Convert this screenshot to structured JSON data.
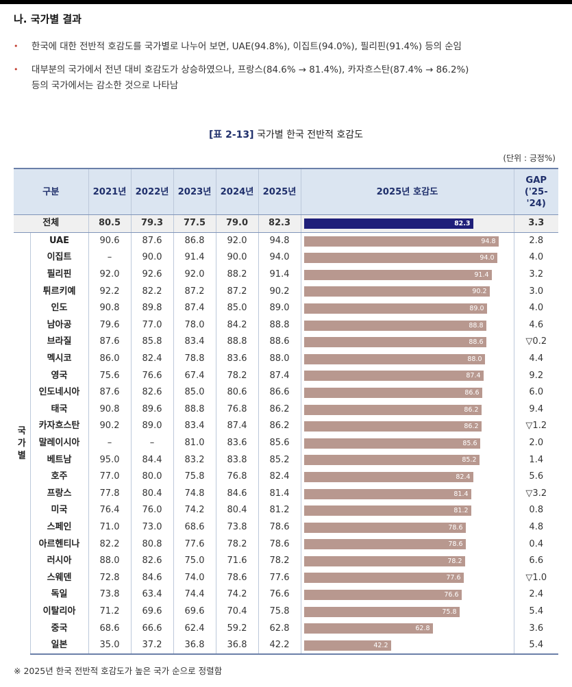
{
  "section": {
    "title": "나. 국가별 결과",
    "bullets": [
      {
        "lines": [
          "한국에 대한 전반적 호감도를 국가별로 나누어 보면, UAE(94.8%), 이집트(94.0%), 필리핀(91.4%) 등의 순임"
        ]
      },
      {
        "lines": [
          "대부분의 국가에서 전년 대비 호감도가 상승하였으나, 프랑스(84.6% → 81.4%), 카자흐스탄(87.4% → 86.2%)",
          "등의 국가에서는 감소한 것으로 나타남"
        ]
      }
    ],
    "bullet_marker": "•"
  },
  "table": {
    "label": "[표 2-13]",
    "title": "국가별 한국 전반적 호감도",
    "unit": "(단위 : 긍정%)",
    "side_label": "국가별",
    "headers": [
      "구분",
      "2021년",
      "2022년",
      "2023년",
      "2024년",
      "2025년",
      "2025년 호감도",
      "GAP ('25-'24)"
    ],
    "bar_max": 100,
    "colors": {
      "total_bar": "#1f1f7a",
      "bar": "#b8988f",
      "header_bg": "#dbe5f1"
    },
    "total": {
      "name": "전체",
      "y2021": "80.5",
      "y2022": "79.3",
      "y2023": "77.5",
      "y2024": "79.0",
      "y2025": "82.3",
      "gap": "3.3",
      "value": 82.3
    },
    "rows": [
      {
        "name": "UAE",
        "y2021": "90.6",
        "y2022": "87.6",
        "y2023": "86.8",
        "y2024": "92.0",
        "y2025": "94.8",
        "gap": "2.8",
        "value": 94.8
      },
      {
        "name": "이집트",
        "y2021": "–",
        "y2022": "90.0",
        "y2023": "91.4",
        "y2024": "90.0",
        "y2025": "94.0",
        "gap": "4.0",
        "value": 94.0
      },
      {
        "name": "필리핀",
        "y2021": "92.0",
        "y2022": "92.6",
        "y2023": "92.0",
        "y2024": "88.2",
        "y2025": "91.4",
        "gap": "3.2",
        "value": 91.4
      },
      {
        "name": "튀르키예",
        "y2021": "92.2",
        "y2022": "82.2",
        "y2023": "87.2",
        "y2024": "87.2",
        "y2025": "90.2",
        "gap": "3.0",
        "value": 90.2
      },
      {
        "name": "인도",
        "y2021": "90.8",
        "y2022": "89.8",
        "y2023": "87.4",
        "y2024": "85.0",
        "y2025": "89.0",
        "gap": "4.0",
        "value": 89.0
      },
      {
        "name": "남아공",
        "y2021": "79.6",
        "y2022": "77.0",
        "y2023": "78.0",
        "y2024": "84.2",
        "y2025": "88.8",
        "gap": "4.6",
        "value": 88.8
      },
      {
        "name": "브라질",
        "y2021": "87.6",
        "y2022": "85.8",
        "y2023": "83.4",
        "y2024": "88.8",
        "y2025": "88.6",
        "gap": "▽0.2",
        "value": 88.6
      },
      {
        "name": "멕시코",
        "y2021": "86.0",
        "y2022": "82.4",
        "y2023": "78.8",
        "y2024": "83.6",
        "y2025": "88.0",
        "gap": "4.4",
        "value": 88.0
      },
      {
        "name": "영국",
        "y2021": "75.6",
        "y2022": "76.6",
        "y2023": "67.4",
        "y2024": "78.2",
        "y2025": "87.4",
        "gap": "9.2",
        "value": 87.4
      },
      {
        "name": "인도네시아",
        "y2021": "87.6",
        "y2022": "82.6",
        "y2023": "85.0",
        "y2024": "80.6",
        "y2025": "86.6",
        "gap": "6.0",
        "value": 86.6
      },
      {
        "name": "태국",
        "y2021": "90.8",
        "y2022": "89.6",
        "y2023": "88.8",
        "y2024": "76.8",
        "y2025": "86.2",
        "gap": "9.4",
        "value": 86.2
      },
      {
        "name": "카자흐스탄",
        "y2021": "90.2",
        "y2022": "89.0",
        "y2023": "83.4",
        "y2024": "87.4",
        "y2025": "86.2",
        "gap": "▽1.2",
        "value": 86.2
      },
      {
        "name": "말레이시아",
        "y2021": "–",
        "y2022": "–",
        "y2023": "81.0",
        "y2024": "83.6",
        "y2025": "85.6",
        "gap": "2.0",
        "value": 85.6
      },
      {
        "name": "베트남",
        "y2021": "95.0",
        "y2022": "84.4",
        "y2023": "83.2",
        "y2024": "83.8",
        "y2025": "85.2",
        "gap": "1.4",
        "value": 85.2
      },
      {
        "name": "호주",
        "y2021": "77.0",
        "y2022": "80.0",
        "y2023": "75.8",
        "y2024": "76.8",
        "y2025": "82.4",
        "gap": "5.6",
        "value": 82.4
      },
      {
        "name": "프랑스",
        "y2021": "77.8",
        "y2022": "80.4",
        "y2023": "74.8",
        "y2024": "84.6",
        "y2025": "81.4",
        "gap": "▽3.2",
        "value": 81.4
      },
      {
        "name": "미국",
        "y2021": "76.4",
        "y2022": "76.0",
        "y2023": "74.2",
        "y2024": "80.4",
        "y2025": "81.2",
        "gap": "0.8",
        "value": 81.2
      },
      {
        "name": "스페인",
        "y2021": "71.0",
        "y2022": "73.0",
        "y2023": "68.6",
        "y2024": "73.8",
        "y2025": "78.6",
        "gap": "4.8",
        "value": 78.6
      },
      {
        "name": "아르헨티나",
        "y2021": "82.2",
        "y2022": "80.8",
        "y2023": "77.6",
        "y2024": "78.2",
        "y2025": "78.6",
        "gap": "0.4",
        "value": 78.6
      },
      {
        "name": "러시아",
        "y2021": "88.0",
        "y2022": "82.6",
        "y2023": "75.0",
        "y2024": "71.6",
        "y2025": "78.2",
        "gap": "6.6",
        "value": 78.2
      },
      {
        "name": "스웨덴",
        "y2021": "72.8",
        "y2022": "84.6",
        "y2023": "74.0",
        "y2024": "78.6",
        "y2025": "77.6",
        "gap": "▽1.0",
        "value": 77.6
      },
      {
        "name": "독일",
        "y2021": "73.8",
        "y2022": "63.4",
        "y2023": "74.4",
        "y2024": "74.2",
        "y2025": "76.6",
        "gap": "2.4",
        "value": 76.6
      },
      {
        "name": "이탈리아",
        "y2021": "71.2",
        "y2022": "69.6",
        "y2023": "69.6",
        "y2024": "70.4",
        "y2025": "75.8",
        "gap": "5.4",
        "value": 75.8
      },
      {
        "name": "중국",
        "y2021": "68.6",
        "y2022": "66.6",
        "y2023": "62.4",
        "y2024": "59.2",
        "y2025": "62.8",
        "gap": "3.6",
        "value": 62.8
      },
      {
        "name": "일본",
        "y2021": "35.0",
        "y2022": "37.2",
        "y2023": "36.8",
        "y2024": "36.8",
        "y2025": "42.2",
        "gap": "5.4",
        "value": 42.2
      }
    ],
    "footnote": "※ 2025년 한국 전반적 호감도가 높은 국가 순으로 정렬함"
  }
}
